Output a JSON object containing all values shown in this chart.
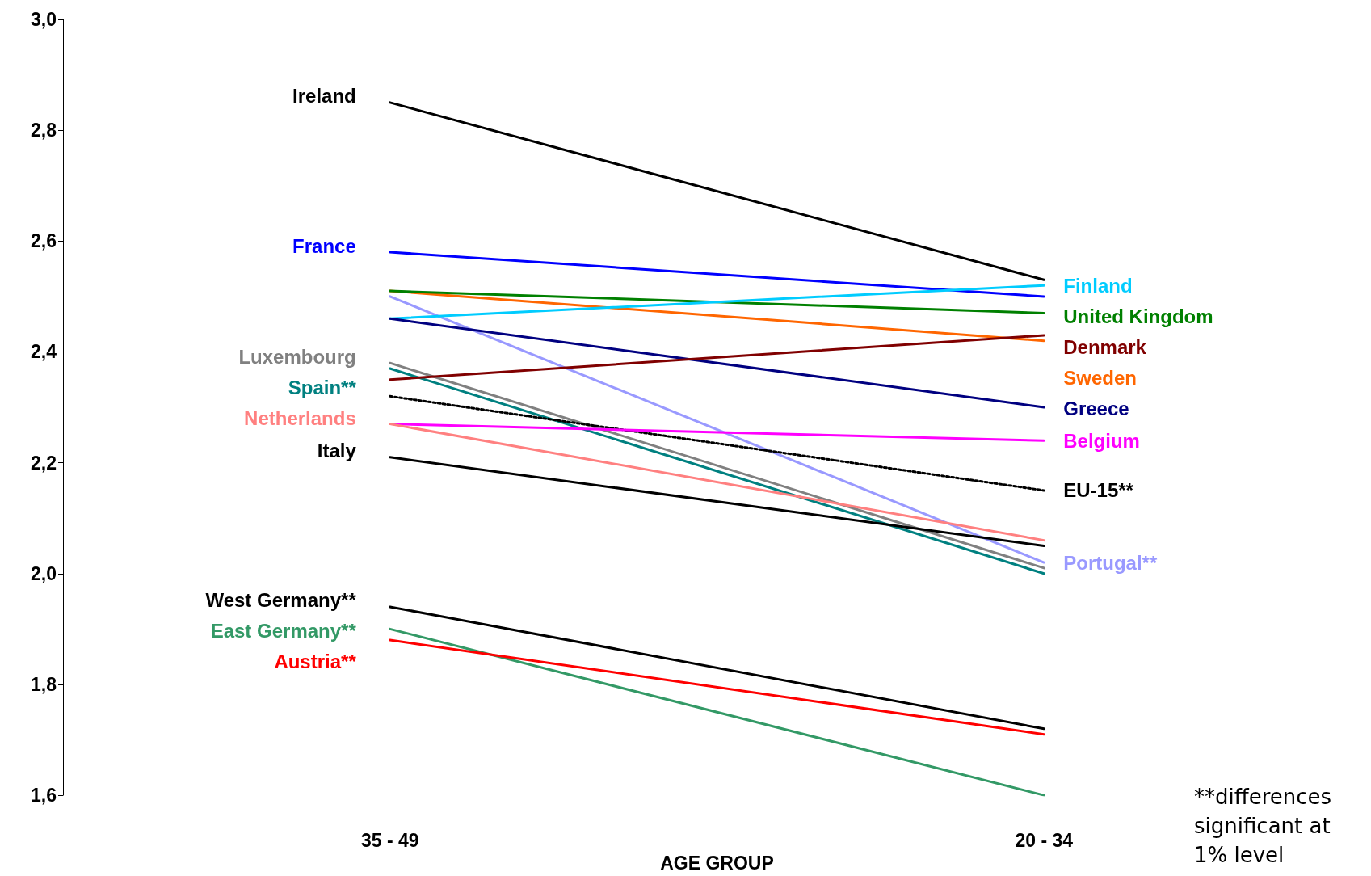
{
  "chart_data": {
    "type": "line",
    "categories": [
      "35 - 49",
      "20 - 34"
    ],
    "xlabel": "AGE GROUP",
    "ylim": [
      1.6,
      3.0
    ],
    "yticks": [
      {
        "value": 1.6,
        "label": "1,6"
      },
      {
        "value": 1.8,
        "label": "1,8"
      },
      {
        "value": 2.0,
        "label": "2,0"
      },
      {
        "value": 2.2,
        "label": "2,2"
      },
      {
        "value": 2.4,
        "label": "2,4"
      },
      {
        "value": 2.6,
        "label": "2,6"
      },
      {
        "value": 2.8,
        "label": "2,8"
      },
      {
        "value": 3.0,
        "label": "3,0"
      }
    ],
    "grid": false,
    "legend": false,
    "marker": "none",
    "line_style": "solid",
    "series": [
      {
        "name": "Ireland",
        "color": "#000000",
        "values": [
          2.85,
          2.53
        ]
      },
      {
        "name": "France",
        "color": "#0000ff",
        "values": [
          2.58,
          2.5
        ]
      },
      {
        "name": "Sweden",
        "color": "#ff6600",
        "values": [
          2.51,
          2.42
        ]
      },
      {
        "name": "United Kingdom",
        "color": "#008000",
        "values": [
          2.51,
          2.47
        ]
      },
      {
        "name": "Portugal**",
        "color": "#9999ff",
        "values": [
          2.5,
          2.02
        ]
      },
      {
        "name": "Finland",
        "color": "#00ccff",
        "values": [
          2.46,
          2.52
        ]
      },
      {
        "name": "Greece",
        "color": "#000080",
        "values": [
          2.46,
          2.3
        ]
      },
      {
        "name": "Luxembourg",
        "color": "#808080",
        "values": [
          2.38,
          2.01
        ]
      },
      {
        "name": "Spain**",
        "color": "#008080",
        "values": [
          2.37,
          2.0
        ]
      },
      {
        "name": "Denmark",
        "color": "#800000",
        "values": [
          2.35,
          2.43
        ]
      },
      {
        "name": "EU-15**",
        "color": "#000000",
        "line_style": "dotted",
        "values": [
          2.32,
          2.15
        ]
      },
      {
        "name": "Belgium",
        "color": "#ff00ff",
        "values": [
          2.27,
          2.24
        ]
      },
      {
        "name": "Netherlands",
        "color": "#ff8080",
        "values": [
          2.27,
          2.06
        ]
      },
      {
        "name": "Italy",
        "color": "#000000",
        "values": [
          2.21,
          2.05
        ]
      },
      {
        "name": "West Germany**",
        "color": "#000000",
        "values": [
          1.94,
          1.72
        ]
      },
      {
        "name": "East Germany**",
        "color": "#339966",
        "values": [
          1.9,
          1.6
        ]
      },
      {
        "name": "Austria**",
        "color": "#ff0000",
        "values": [
          1.88,
          1.71
        ]
      }
    ],
    "annotations": [
      "**differences significant at 1% level"
    ]
  }
}
